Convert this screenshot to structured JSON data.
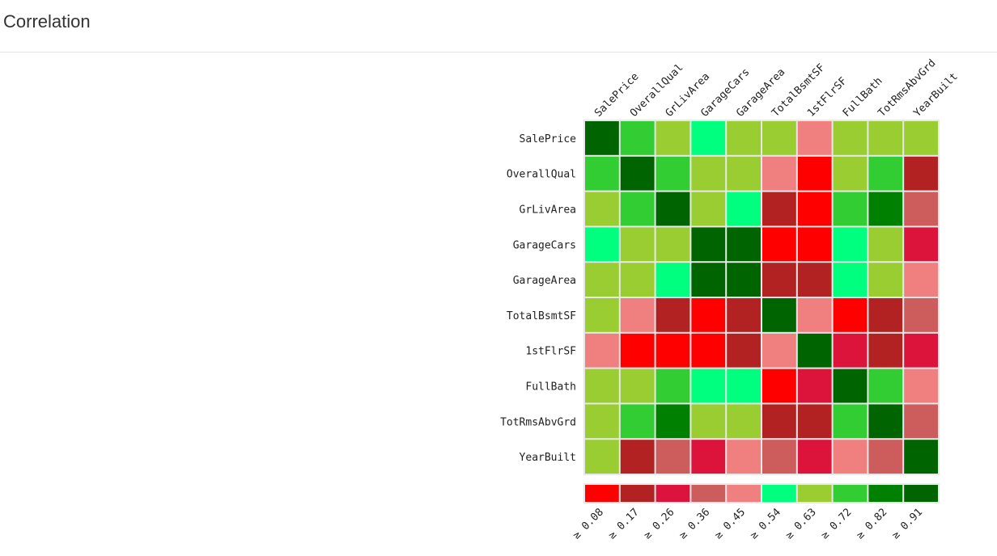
{
  "page": {
    "title": "Correlation"
  },
  "chart_data": {
    "type": "heatmap",
    "title": "Correlation",
    "variables": [
      "SalePrice",
      "OverallQual",
      "GrLivArea",
      "GarageCars",
      "GarageArea",
      "TotalBsmtSF",
      "1stFlrSF",
      "FullBath",
      "TotRmsAbvGrd",
      "YearBuilt"
    ],
    "bin_index": [
      [
        9,
        7,
        6,
        5,
        6,
        6,
        4,
        6,
        6,
        6
      ],
      [
        7,
        9,
        7,
        6,
        6,
        4,
        0,
        6,
        7,
        1
      ],
      [
        6,
        7,
        9,
        6,
        5,
        1,
        0,
        7,
        8,
        3
      ],
      [
        5,
        6,
        6,
        9,
        9,
        0,
        0,
        5,
        6,
        2
      ],
      [
        6,
        6,
        5,
        9,
        9,
        1,
        1,
        5,
        6,
        4
      ],
      [
        6,
        4,
        1,
        0,
        1,
        9,
        4,
        0,
        1,
        3
      ],
      [
        4,
        0,
        0,
        0,
        1,
        4,
        9,
        2,
        1,
        2
      ],
      [
        6,
        6,
        7,
        5,
        5,
        0,
        2,
        9,
        7,
        4
      ],
      [
        6,
        7,
        8,
        6,
        6,
        1,
        1,
        7,
        9,
        3
      ],
      [
        6,
        1,
        3,
        2,
        4,
        3,
        2,
        4,
        3,
        9
      ]
    ],
    "legend": {
      "thresholds": [
        0.08,
        0.17,
        0.26,
        0.36,
        0.45,
        0.54,
        0.63,
        0.72,
        0.82,
        0.91
      ],
      "labels": [
        "≥ 0.08",
        "≥ 0.17",
        "≥ 0.26",
        "≥ 0.36",
        "≥ 0.45",
        "≥ 0.54",
        "≥ 0.63",
        "≥ 0.72",
        "≥ 0.82",
        "≥ 0.91"
      ],
      "colors": [
        "#ff0000",
        "#b22222",
        "#dc143c",
        "#cd5c5c",
        "#f08080",
        "#00ff7f",
        "#9acd32",
        "#32cd32",
        "#008000",
        "#006400"
      ]
    }
  }
}
